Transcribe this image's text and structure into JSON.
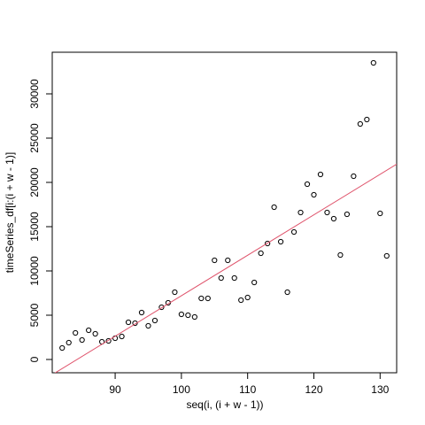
{
  "chart_data": {
    "type": "scatter",
    "x_label": "seq(i, (i + w - 1))",
    "y_label": "timeSeries_df[i:(i + w - 1)]",
    "x": [
      82,
      83,
      84,
      85,
      86,
      87,
      88,
      89,
      90,
      91,
      92,
      93,
      94,
      95,
      96,
      97,
      98,
      99,
      100,
      101,
      102,
      103,
      104,
      105,
      106,
      107,
      108,
      109,
      110,
      111,
      112,
      113,
      114,
      115,
      116,
      117,
      118,
      119,
      120,
      121,
      122,
      123,
      124,
      125,
      126,
      127,
      128,
      129,
      130,
      131
    ],
    "values": [
      1300,
      1900,
      3000,
      2200,
      3300,
      2900,
      2000,
      2100,
      2400,
      2600,
      4200,
      4100,
      5300,
      3800,
      4400,
      5900,
      6400,
      7600,
      5100,
      5000,
      4800,
      6900,
      6900,
      11200,
      9200,
      11200,
      9200,
      6700,
      7000,
      8700,
      12000,
      13100,
      17200,
      13300,
      7600,
      14400,
      16600,
      19800,
      18600,
      20900,
      16600,
      15900,
      11800,
      16400,
      20700,
      26600,
      27100,
      33500,
      16500,
      11700
    ],
    "color": "#000000",
    "abline": {
      "intercept": -38500,
      "slope": 457,
      "color": "#DF536B"
    },
    "xlim": [
      80.5,
      132.5
    ],
    "ylim": [
      -1500,
      34700
    ],
    "xticks": [
      90,
      100,
      110,
      120,
      130
    ],
    "yticks": [
      0,
      5000,
      10000,
      15000,
      20000,
      25000,
      30000
    ]
  }
}
